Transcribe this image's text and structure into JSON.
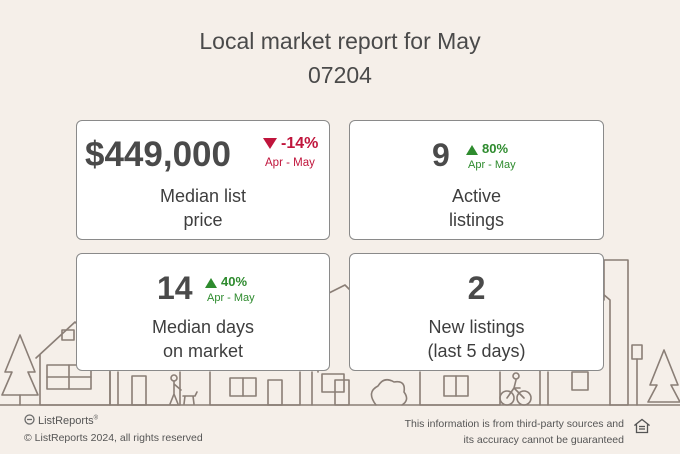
{
  "header": {
    "title": "Local market report for May",
    "zip": "07204"
  },
  "cards": {
    "median_list_price": {
      "value": "$449,000",
      "change": "-14%",
      "direction": "down",
      "period": "Apr - May",
      "label_line1": "Median list",
      "label_line2": "price"
    },
    "active_listings": {
      "value": "9",
      "change": "80%",
      "direction": "up",
      "period": "Apr - May",
      "label_line1": "Active",
      "label_line2": "listings"
    },
    "median_days_on_market": {
      "value": "14",
      "change": "40%",
      "direction": "up",
      "period": "Apr - May",
      "label_line1": "Median days",
      "label_line2": "on market"
    },
    "new_listings": {
      "value": "2",
      "label_line1": "New listings",
      "label_line2": "(last 5 days)"
    }
  },
  "footer": {
    "brand": "ListReports",
    "copyright": "© ListReports 2024, all rights reserved",
    "disclaimer_line1": "This information is from third-party sources and",
    "disclaimer_line2": "its accuracy cannot be guaranteed"
  },
  "colors": {
    "background": "#f5efe9",
    "negative": "#c0153c",
    "positive": "#2e8b2e",
    "illustration_line": "#8a7e76"
  },
  "icons": [
    "triangle-down-icon",
    "triangle-up-icon",
    "listreports-logo-icon",
    "equal-housing-icon"
  ]
}
